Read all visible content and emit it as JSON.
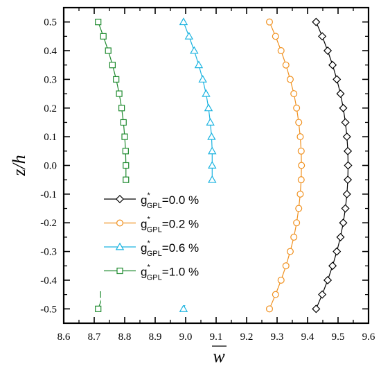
{
  "chart_data": {
    "type": "line",
    "xlabel": "w",
    "ylabel": "z/h",
    "xlim": [
      8.6,
      9.6
    ],
    "ylim": [
      -0.55,
      0.55
    ],
    "xticks": [
      "8.6",
      "8.7",
      "8.8",
      "8.9",
      "9.0",
      "9.1",
      "9.2",
      "9.3",
      "9.4",
      "9.5",
      "9.6"
    ],
    "yticks": [
      "0.5",
      "0.4",
      "0.3",
      "0.2",
      "0.1",
      "0.0",
      "-0.1",
      "-0.2",
      "-0.3",
      "-0.4",
      "-0.5"
    ],
    "grid": false,
    "legend_position": "lower-left",
    "legend": [
      {
        "prefix": "g",
        "sup": "*",
        "sub": "GPL",
        "suffix": "=0.0 %"
      },
      {
        "prefix": "g",
        "sup": "*",
        "sub": "GPL",
        "suffix": "=0.2 %"
      },
      {
        "prefix": "g",
        "sup": "*",
        "sub": "GPL",
        "suffix": "=0.6 %"
      },
      {
        "prefix": "g",
        "sup": "*",
        "sub": "GPL",
        "suffix": "=1.0 %"
      }
    ],
    "series": [
      {
        "marker": "diamond",
        "color": "#000000",
        "z": [
          0.5,
          0.45,
          0.4,
          0.35,
          0.3,
          0.25,
          0.2,
          0.15,
          0.1,
          0.05,
          0.0,
          -0.05,
          -0.1,
          -0.15,
          -0.2,
          -0.25,
          -0.3,
          -0.35,
          -0.4,
          -0.45,
          -0.5
        ],
        "w": [
          9.428,
          9.448,
          9.466,
          9.482,
          9.496,
          9.508,
          9.517,
          9.524,
          9.529,
          9.532,
          9.533,
          9.532,
          9.529,
          9.524,
          9.517,
          9.508,
          9.496,
          9.482,
          9.466,
          9.448,
          9.428
        ]
      },
      {
        "marker": "circle",
        "color": "#f0901e",
        "z": [
          0.5,
          0.45,
          0.4,
          0.35,
          0.3,
          0.25,
          0.2,
          0.15,
          0.1,
          0.05,
          0.0,
          -0.05,
          -0.1,
          -0.15,
          -0.2,
          -0.25,
          -0.3,
          -0.35,
          -0.4,
          -0.45,
          -0.5
        ],
        "w": [
          9.275,
          9.295,
          9.313,
          9.329,
          9.343,
          9.355,
          9.364,
          9.371,
          9.376,
          9.379,
          9.38,
          9.379,
          9.376,
          9.371,
          9.364,
          9.355,
          9.343,
          9.329,
          9.313,
          9.295,
          9.275
        ]
      },
      {
        "marker": "triangle",
        "color": "#1ab3e0",
        "z": [
          0.5,
          0.45,
          0.4,
          0.35,
          0.3,
          0.25,
          0.2,
          0.15,
          0.1,
          0.05,
          0.0,
          -0.05,
          -0.45,
          -0.5
        ],
        "w": [
          8.993,
          9.011,
          9.028,
          9.043,
          9.056,
          9.067,
          9.075,
          9.081,
          9.085,
          9.087,
          9.087,
          9.087,
          9.011,
          8.993
        ]
      },
      {
        "marker": "square",
        "color": "#1e8a2e",
        "z": [
          0.5,
          0.45,
          0.4,
          0.35,
          0.3,
          0.25,
          0.2,
          0.15,
          0.1,
          0.05,
          0.0,
          -0.05,
          -0.45,
          -0.5
        ],
        "w": [
          8.713,
          8.73,
          8.746,
          8.76,
          8.772,
          8.782,
          8.79,
          8.796,
          8.8,
          8.803,
          8.804,
          8.804,
          8.73,
          8.713
        ]
      }
    ]
  }
}
